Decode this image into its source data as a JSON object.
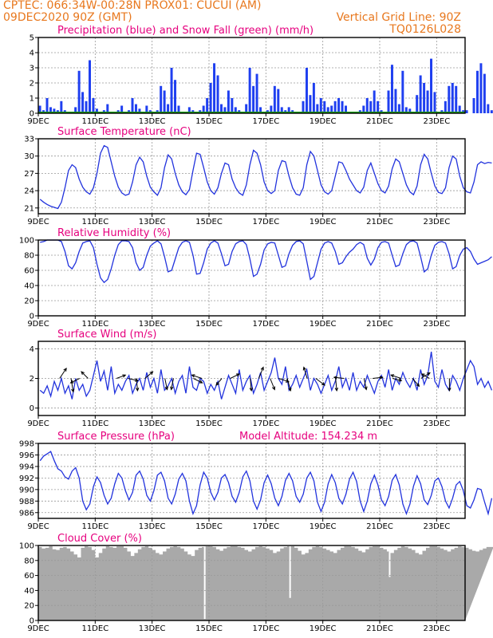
{
  "header": {
    "line1_left": "CPTEC:   066:34W-00:28N   PROX01: CUCUI (AM)",
    "line2_left": "09DEC2020 90Z (GMT)",
    "line2_right": "Vertical Grid Line: 90Z",
    "line3_right": "TQ0126L028"
  },
  "colors": {
    "header_text": "#e8781e",
    "panel_title": "#e6007e",
    "series_line": "#2233dd",
    "precip_bar": "#1f3ff0",
    "snow_line": "#1aa01a",
    "cloud_fill": "#a9a9a9",
    "grid": "#999999"
  },
  "chart_data": [
    {
      "id": "precip",
      "type": "bar",
      "title": "Precipitation (blue) and Snow Fall (green) (mm/h)",
      "ylim": [
        0,
        5
      ],
      "yticks": [
        0,
        1,
        2,
        3,
        4,
        5
      ],
      "x_start_day": 9,
      "x_end_day": 24,
      "x_tick_days": [
        9,
        11,
        13,
        15,
        17,
        19,
        21,
        23
      ],
      "x_tick_labels": [
        "9DEC",
        "11DEC",
        "13DEC",
        "15DEC",
        "17DEC",
        "19DEC",
        "21DEC",
        "23DEC"
      ],
      "samples_per_day": 8,
      "values": [
        0.5,
        0.2,
        1.0,
        0.4,
        0.3,
        0.2,
        0.8,
        0.2,
        0.0,
        0.0,
        0.4,
        2.8,
        1.4,
        0.8,
        3.5,
        1.0,
        0.3,
        0.0,
        0.2,
        0.6,
        0.0,
        0.0,
        0.2,
        0.5,
        0.1,
        0.2,
        1.0,
        0.6,
        0.3,
        0.1,
        0.5,
        0.2,
        0.0,
        0.2,
        1.8,
        1.5,
        0.6,
        3.0,
        2.2,
        0.5,
        0.0,
        0.1,
        0.4,
        0.2,
        0.0,
        0.2,
        0.5,
        1.0,
        2.0,
        3.3,
        2.5,
        0.6,
        0.4,
        1.5,
        1.0,
        0.4,
        0.2,
        0.0,
        0.6,
        3.0,
        1.8,
        2.6,
        0.4,
        0.1,
        0.2,
        0.5,
        1.8,
        1.6,
        0.4,
        0.2,
        0.4,
        0.2,
        0.0,
        0.1,
        0.8,
        3.0,
        1.2,
        2.0,
        0.6,
        1.0,
        0.8,
        0.4,
        0.5,
        0.8,
        1.0,
        0.8,
        0.5,
        0.0,
        0.0,
        0.0,
        0.2,
        0.5,
        1.0,
        0.8,
        1.5,
        0.8,
        0.2,
        0.0,
        1.5,
        3.2,
        1.6,
        0.6,
        2.8,
        0.4,
        0.3,
        0.1,
        1.2,
        2.5,
        2.0,
        1.5,
        3.6,
        1.4,
        0.0,
        0.2,
        0.8,
        1.8,
        2.0,
        1.8,
        0.5,
        0.2,
        0.2,
        0.0,
        1.0,
        2.8,
        3.3,
        2.6,
        0.6,
        0.2
      ]
    },
    {
      "id": "temperature",
      "type": "line",
      "title": "Surface Temperature (nC)",
      "ylim": [
        20,
        33
      ],
      "yticks": [
        21,
        24,
        27,
        30,
        33
      ],
      "x_start_day": 9,
      "x_end_day": 24,
      "x_tick_days": [
        9,
        11,
        13,
        15,
        17,
        19,
        21,
        23
      ],
      "x_tick_labels": [
        "9DEC",
        "11DEC",
        "13DEC",
        "15DEC",
        "17DEC",
        "19DEC",
        "21DEC",
        "23DEC"
      ],
      "samples_per_day": 8,
      "values": [
        22.5,
        22.0,
        21.6,
        21.3,
        21.1,
        20.9,
        22.0,
        24.5,
        27.5,
        28.5,
        28.0,
        26.0,
        24.6,
        23.8,
        23.4,
        24.5,
        27.0,
        30.5,
        31.8,
        31.5,
        29.0,
        26.5,
        24.6,
        23.6,
        23.2,
        23.4,
        25.5,
        28.5,
        29.8,
        29.0,
        26.5,
        24.6,
        23.8,
        23.2,
        24.5,
        28.0,
        30.2,
        29.5,
        27.0,
        25.0,
        23.8,
        23.3,
        24.2,
        27.5,
        30.5,
        30.3,
        28.0,
        25.5,
        24.0,
        23.4,
        24.5,
        27.0,
        28.8,
        28.5,
        26.0,
        24.5,
        23.6,
        23.2,
        25.0,
        28.5,
        31.0,
        30.5,
        28.5,
        25.5,
        24.0,
        23.5,
        24.0,
        27.5,
        29.2,
        29.0,
        26.5,
        24.5,
        23.4,
        23.2,
        24.5,
        28.5,
        30.8,
        30.0,
        27.5,
        25.0,
        23.8,
        23.4,
        24.0,
        26.5,
        29.0,
        28.8,
        27.5,
        26.0,
        25.0,
        24.0,
        23.6,
        24.6,
        27.5,
        28.8,
        27.0,
        25.2,
        24.0,
        23.6,
        24.8,
        27.8,
        29.5,
        29.0,
        27.0,
        25.0,
        23.8,
        23.3,
        24.8,
        28.5,
        30.3,
        29.5,
        27.0,
        24.8,
        23.7,
        23.5,
        24.5,
        28.0,
        30.0,
        29.5,
        26.5,
        24.5,
        23.8,
        23.6,
        25.5,
        28.5,
        29.0,
        28.7,
        28.9,
        28.8
      ]
    },
    {
      "id": "humidity",
      "type": "line",
      "title": "Relative Humidity (%)",
      "ylim": [
        0,
        100
      ],
      "yticks": [
        0,
        20,
        40,
        60,
        80,
        100
      ],
      "x_start_day": 9,
      "x_end_day": 24,
      "x_tick_days": [
        9,
        11,
        13,
        15,
        17,
        19,
        21,
        23
      ],
      "x_tick_labels": [
        "9DEC",
        "11DEC",
        "13DEC",
        "15DEC",
        "17DEC",
        "19DEC",
        "21DEC",
        "23DEC"
      ],
      "samples_per_day": 8,
      "values": [
        97,
        98,
        100,
        100,
        100,
        100,
        98,
        85,
        66,
        62,
        70,
        85,
        96,
        98,
        99,
        90,
        68,
        50,
        44,
        48,
        62,
        80,
        94,
        99,
        99,
        98,
        90,
        70,
        60,
        64,
        80,
        92,
        96,
        99,
        95,
        78,
        58,
        60,
        75,
        90,
        97,
        99,
        97,
        80,
        55,
        56,
        70,
        88,
        96,
        99,
        96,
        82,
        66,
        68,
        85,
        95,
        98,
        99,
        94,
        75,
        52,
        55,
        68,
        87,
        95,
        97,
        96,
        80,
        64,
        66,
        82,
        93,
        98,
        99,
        95,
        72,
        48,
        52,
        70,
        88,
        96,
        98,
        96,
        85,
        68,
        70,
        78,
        84,
        88,
        94,
        97,
        94,
        76,
        67,
        75,
        90,
        97,
        98,
        96,
        80,
        65,
        67,
        82,
        94,
        98,
        99,
        96,
        78,
        58,
        62,
        80,
        93,
        97,
        98,
        96,
        82,
        62,
        65,
        80,
        88,
        90,
        85,
        75,
        68,
        70,
        72,
        74,
        78
      ]
    },
    {
      "id": "wind",
      "type": "line",
      "title": "Surface Wind (m/s)",
      "ylim": [
        -0.5,
        4.5
      ],
      "yticks": [
        0,
        2,
        4
      ],
      "x_start_day": 9,
      "x_end_day": 24,
      "x_tick_days": [
        9,
        11,
        13,
        15,
        17,
        19,
        21,
        23
      ],
      "x_tick_labels": [
        "9DEC",
        "11DEC",
        "13DEC",
        "15DEC",
        "17DEC",
        "19DEC",
        "21DEC",
        "23DEC"
      ],
      "samples_per_day": 8,
      "values": [
        1.2,
        1.0,
        1.5,
        0.8,
        1.8,
        1.2,
        2.0,
        1.0,
        1.5,
        0.6,
        2.0,
        1.2,
        1.6,
        0.8,
        1.2,
        2.2,
        3.2,
        1.8,
        2.5,
        1.2,
        2.8,
        1.0,
        1.6,
        1.2,
        1.8,
        2.2,
        1.0,
        1.6,
        2.0,
        1.2,
        2.4,
        1.4,
        2.0,
        1.0,
        2.6,
        1.2,
        1.5,
        2.0,
        1.0,
        1.8,
        2.2,
        1.0,
        2.8,
        1.4,
        1.2,
        2.0,
        1.8,
        1.0,
        1.6,
        1.2,
        1.8,
        0.6,
        1.4,
        2.2,
        1.6,
        1.0,
        2.6,
        1.2,
        1.8,
        2.2,
        1.0,
        1.6,
        2.4,
        1.2,
        1.8,
        2.4,
        3.4,
        2.0,
        1.6,
        2.8,
        1.2,
        1.6,
        2.2,
        1.4,
        2.0,
        2.6,
        1.2,
        2.0,
        1.6,
        1.0,
        1.6,
        2.2,
        1.2,
        1.8,
        2.8,
        1.4,
        2.0,
        1.2,
        2.4,
        1.2,
        1.8,
        1.4,
        2.2,
        1.6,
        1.0,
        1.8,
        2.2,
        1.4,
        2.6,
        1.2,
        2.0,
        1.6,
        2.4,
        1.8,
        1.4,
        2.0,
        1.2,
        2.6,
        1.6,
        2.2,
        3.8,
        1.8,
        1.4,
        2.6,
        1.6,
        1.2,
        2.2,
        1.8,
        1.2,
        2.0,
        2.6,
        3.2,
        2.8,
        1.6,
        2.0,
        1.4,
        1.8,
        1.2
      ],
      "vectors": [
        {
          "day": 9.75,
          "u": 0.6,
          "v": 0.9
        },
        {
          "day": 10.15,
          "u": 0.2,
          "v": -1.2
        },
        {
          "day": 10.45,
          "u": -0.8,
          "v": -0.4
        },
        {
          "day": 10.75,
          "u": -0.6,
          "v": 0.6
        },
        {
          "day": 11.75,
          "u": 0.8,
          "v": 0.3
        },
        {
          "day": 12.15,
          "u": 0.9,
          "v": -0.2
        },
        {
          "day": 12.45,
          "u": 0.1,
          "v": -1.1
        },
        {
          "day": 12.75,
          "u": 0.7,
          "v": 0.6
        },
        {
          "day": 13.45,
          "u": 0.2,
          "v": -1.0
        },
        {
          "day": 13.75,
          "u": -0.2,
          "v": -1.0
        },
        {
          "day": 14.45,
          "u": 0.8,
          "v": -0.4
        },
        {
          "day": 14.75,
          "u": -0.9,
          "v": 0.3
        },
        {
          "day": 15.45,
          "u": -0.5,
          "v": -0.6
        },
        {
          "day": 15.75,
          "u": 0.8,
          "v": 0.4
        },
        {
          "day": 16.45,
          "u": 0.1,
          "v": -1.1
        },
        {
          "day": 16.75,
          "u": 0.4,
          "v": 1.0
        },
        {
          "day": 17.15,
          "u": 0.4,
          "v": -1.0
        },
        {
          "day": 17.45,
          "u": 0.9,
          "v": -0.3
        },
        {
          "day": 17.75,
          "u": 0.3,
          "v": -1.1
        },
        {
          "day": 18.45,
          "u": -0.3,
          "v": 1.0
        },
        {
          "day": 18.75,
          "u": 0.8,
          "v": -0.6
        },
        {
          "day": 19.45,
          "u": 0.1,
          "v": -1.1
        },
        {
          "day": 19.75,
          "u": -0.9,
          "v": 0.1
        },
        {
          "day": 20.45,
          "u": 0.2,
          "v": -1.0
        },
        {
          "day": 20.75,
          "u": 0.9,
          "v": 0.1
        },
        {
          "day": 21.45,
          "u": 0.8,
          "v": -0.2
        },
        {
          "day": 21.75,
          "u": -0.9,
          "v": 0.3
        },
        {
          "day": 22.15,
          "u": 0.6,
          "v": -0.7
        },
        {
          "day": 22.45,
          "u": 0.8,
          "v": 0.5
        },
        {
          "day": 22.75,
          "u": -0.7,
          "v": 0.4
        },
        {
          "day": 23.45,
          "u": 0.0,
          "v": -1.1
        }
      ]
    },
    {
      "id": "pressure",
      "type": "line",
      "title": "Surface Pressure (hPa)",
      "annotation": "Model Altitude: 154.234 m",
      "ylim": [
        985,
        998
      ],
      "yticks": [
        986,
        988,
        990,
        992,
        994,
        996,
        998
      ],
      "x_start_day": 9,
      "x_end_day": 24,
      "x_tick_days": [
        9,
        11,
        13,
        15,
        17,
        19,
        21,
        23
      ],
      "x_tick_labels": [
        "9DEC",
        "11DEC",
        "13DEC",
        "15DEC",
        "17DEC",
        "19DEC",
        "21DEC",
        "23DEC"
      ],
      "samples_per_day": 8,
      "values": [
        995.0,
        995.8,
        996.2,
        996.6,
        995.0,
        993.6,
        993.2,
        992.2,
        991.8,
        993.2,
        993.8,
        992.0,
        988.0,
        986.5,
        987.5,
        990.5,
        992.2,
        991.2,
        989.0,
        987.5,
        988.5,
        991.0,
        992.8,
        992.0,
        989.8,
        988.2,
        989.5,
        992.5,
        993.2,
        991.8,
        989.0,
        988.0,
        989.8,
        992.5,
        993.0,
        991.5,
        988.5,
        987.5,
        989.2,
        991.8,
        992.8,
        991.5,
        988.0,
        985.8,
        987.2,
        990.8,
        993.0,
        992.0,
        989.5,
        988.2,
        989.5,
        992.0,
        992.6,
        991.2,
        988.8,
        987.8,
        989.5,
        992.2,
        993.2,
        991.5,
        988.0,
        986.6,
        988.2,
        991.2,
        992.5,
        991.0,
        988.5,
        987.2,
        988.8,
        991.6,
        992.8,
        991.5,
        988.8,
        987.8,
        989.2,
        992.0,
        993.0,
        991.5,
        987.8,
        986.2,
        987.8,
        991.0,
        992.6,
        991.2,
        988.5,
        987.5,
        989.2,
        991.8,
        993.0,
        991.4,
        988.0,
        986.2,
        988.0,
        991.0,
        992.5,
        990.8,
        988.2,
        987.2,
        988.8,
        991.6,
        992.6,
        990.8,
        987.5,
        985.8,
        987.5,
        990.6,
        992.4,
        991.0,
        988.2,
        987.4,
        989.0,
        991.5,
        992.0,
        990.5,
        988.0,
        986.8,
        988.5,
        990.8,
        991.4,
        989.8,
        987.2,
        986.8,
        988.2,
        990.2,
        990.0,
        987.8,
        985.8,
        988.5
      ]
    },
    {
      "id": "cloud",
      "type": "area",
      "title": "Cloud Cover (%)",
      "ylim": [
        0,
        100
      ],
      "yticks": [
        0,
        20,
        40,
        60,
        80,
        100
      ],
      "x_start_day": 9,
      "x_end_day": 24,
      "x_tick_days": [
        9,
        11,
        13,
        15,
        17,
        19,
        21,
        23
      ],
      "x_tick_labels": [
        "9DEC",
        "11DEC",
        "13DEC",
        "15DEC",
        "17DEC",
        "19DEC",
        "21DEC",
        "23DEC"
      ],
      "samples_per_day": 8,
      "values": [
        98,
        96,
        97,
        99,
        95,
        94,
        97,
        98,
        96,
        92,
        88,
        84,
        97,
        99,
        98,
        94,
        84,
        90,
        96,
        99,
        98,
        97,
        99,
        99,
        97,
        92,
        86,
        90,
        95,
        98,
        99,
        97,
        94,
        90,
        88,
        92,
        96,
        98,
        99,
        98,
        96,
        92,
        88,
        86,
        94,
        97,
        98,
        99,
        99,
        98,
        95,
        93,
        96,
        98,
        99,
        99,
        98,
        97,
        94,
        92,
        95,
        98,
        99,
        98,
        96,
        94,
        90,
        92,
        96,
        98,
        99,
        99,
        97,
        93,
        88,
        90,
        95,
        98,
        99,
        98,
        96,
        94,
        92,
        90,
        94,
        97,
        99,
        99,
        98,
        96,
        93,
        91,
        95,
        98,
        99,
        99,
        97,
        95,
        92,
        90,
        94,
        97,
        99,
        98,
        96,
        94,
        90,
        88,
        93,
        97,
        99,
        99,
        98,
        96,
        94,
        92,
        95,
        97,
        99,
        98,
        97,
        95,
        93,
        92,
        94,
        96,
        98,
        98
      ],
      "dips": [
        {
          "day": 14.85,
          "value": 2
        },
        {
          "day": 17.85,
          "value": 30
        },
        {
          "day": 21.35,
          "value": 58
        }
      ]
    }
  ]
}
